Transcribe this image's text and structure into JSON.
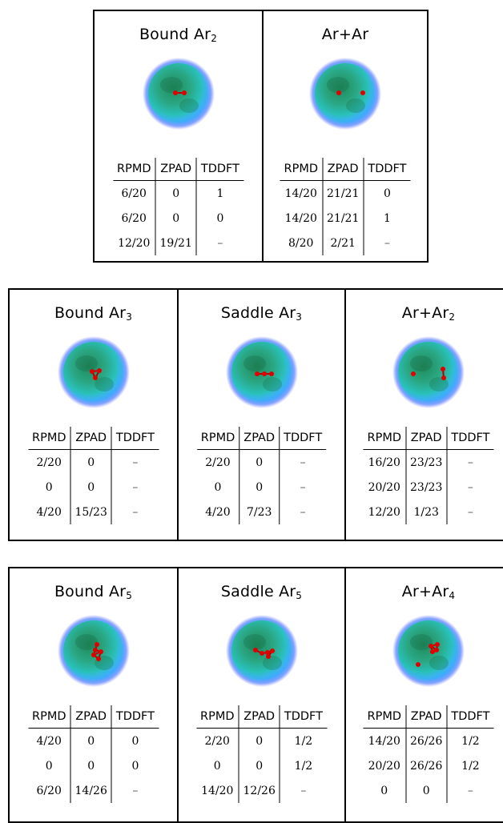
{
  "groups": [
    {
      "panels": [
        {
          "title": "Bound Ar",
          "sub": "2",
          "mol": "bound2",
          "headers": [
            "RPMD",
            "ZPAD",
            "TDDFT"
          ],
          "rows": [
            [
              "6/20",
              "0",
              "1"
            ],
            [
              "6/20",
              "0",
              "0"
            ],
            [
              "12/20",
              "19/21",
              "–"
            ]
          ]
        },
        {
          "title": "Ar+Ar",
          "sub": "",
          "mol": "sep2",
          "headers": [
            "RPMD",
            "ZPAD",
            "TDDFT"
          ],
          "rows": [
            [
              "14/20",
              "21/21",
              "0"
            ],
            [
              "14/20",
              "21/21",
              "1"
            ],
            [
              "8/20",
              "2/21",
              "–"
            ]
          ]
        }
      ]
    },
    {
      "panels": [
        {
          "title": "Bound Ar",
          "sub": "3",
          "mol": "bound3",
          "headers": [
            "RPMD",
            "ZPAD",
            "TDDFT"
          ],
          "rows": [
            [
              "2/20",
              "0",
              "–"
            ],
            [
              "0",
              "0",
              "–"
            ],
            [
              "4/20",
              "15/23",
              "–"
            ]
          ]
        },
        {
          "title": "Saddle Ar",
          "sub": "3",
          "mol": "saddle3",
          "headers": [
            "RPMD",
            "ZPAD",
            "TDDFT"
          ],
          "rows": [
            [
              "2/20",
              "0",
              "–"
            ],
            [
              "0",
              "0",
              "–"
            ],
            [
              "4/20",
              "7/23",
              "–"
            ]
          ]
        },
        {
          "title": "Ar+Ar",
          "sub": "2",
          "mol": "sep3",
          "headers": [
            "RPMD",
            "ZPAD",
            "TDDFT"
          ],
          "rows": [
            [
              "16/20",
              "23/23",
              "–"
            ],
            [
              "20/20",
              "23/23",
              "–"
            ],
            [
              "12/20",
              "1/23",
              "–"
            ]
          ]
        }
      ]
    },
    {
      "panels": [
        {
          "title": "Bound Ar",
          "sub": "5",
          "mol": "bound5",
          "headers": [
            "RPMD",
            "ZPAD",
            "TDDFT"
          ],
          "rows": [
            [
              "4/20",
              "0",
              "0"
            ],
            [
              "0",
              "0",
              "0"
            ],
            [
              "6/20",
              "14/26",
              "–"
            ]
          ]
        },
        {
          "title": "Saddle Ar",
          "sub": "5",
          "mol": "saddle5",
          "headers": [
            "RPMD",
            "ZPAD",
            "TDDFT"
          ],
          "rows": [
            [
              "2/20",
              "0",
              "1/2"
            ],
            [
              "0",
              "0",
              "1/2"
            ],
            [
              "14/20",
              "12/26",
              "–"
            ]
          ]
        },
        {
          "title": "Ar+Ar",
          "sub": "4",
          "mol": "sep5",
          "headers": [
            "RPMD",
            "ZPAD",
            "TDDFT"
          ],
          "rows": [
            [
              "14/20",
              "26/26",
              "1/2"
            ],
            [
              "20/20",
              "26/26",
              "1/2"
            ],
            [
              "0",
              "0",
              "–"
            ]
          ]
        }
      ]
    }
  ]
}
